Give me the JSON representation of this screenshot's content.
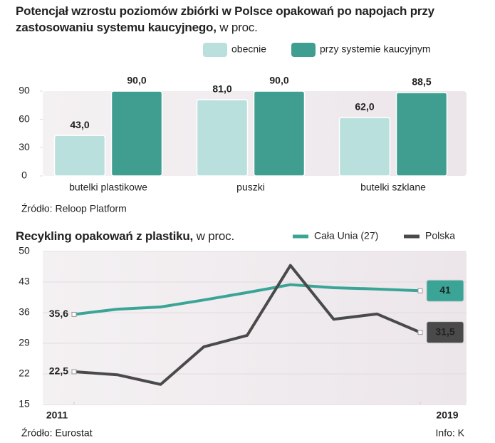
{
  "chart_data": [
    {
      "type": "bar",
      "title": "Potencjał wzrostu poziomów zbiórki w Polsce opakowań po napojach przy zastosowaniu systemu kaucyjnego,",
      "unit": "w proc.",
      "categories": [
        "butelki  plastikowe",
        "puszki",
        "butelki szklane"
      ],
      "series": [
        {
          "name": "obecnie",
          "color": "#b9e0dc",
          "values": [
            43,
            81,
            62
          ],
          "value_labels": [
            "43,0",
            "81,0",
            "62,0"
          ]
        },
        {
          "name": "przy systemie kaucyjnym",
          "color": "#3f9e8f",
          "values": [
            90,
            90,
            88.5
          ],
          "value_labels": [
            "90,0",
            "90,0",
            "88,5"
          ]
        }
      ],
      "ylim": [
        0,
        90
      ],
      "yticks": [
        0,
        30,
        60,
        90
      ],
      "source": "Źródło: Reloop Platform"
    },
    {
      "type": "line",
      "title": "Recykling opakowań z plastiku,",
      "unit": "w proc.",
      "x": [
        2011,
        2012,
        2013,
        2014,
        2015,
        2016,
        2017,
        2018,
        2019
      ],
      "series": [
        {
          "name": "Cała Unia (27)",
          "color": "#3aa597",
          "values": [
            35.6,
            36.8,
            37.3,
            38.9,
            40.6,
            42.4,
            41.7,
            41.4,
            41
          ],
          "value_labels": [
            "35,6",
            null,
            null,
            null,
            null,
            null,
            null,
            null,
            "41"
          ]
        },
        {
          "name": "Polska",
          "color": "#4a4a4a",
          "values": [
            22.5,
            21.8,
            19.6,
            28.2,
            30.8,
            46.8,
            34.5,
            35.7,
            31.5
          ],
          "value_labels": [
            "22,5",
            null,
            null,
            null,
            null,
            null,
            null,
            null,
            "31,5"
          ]
        }
      ],
      "xlim": [
        2011,
        2019
      ],
      "xticks": [
        2011,
        2019
      ],
      "ylim": [
        15,
        50
      ],
      "yticks": [
        15,
        22,
        29,
        36,
        43,
        50
      ],
      "source": "Źródło: Eurostat",
      "credit": "Info: K"
    }
  ]
}
